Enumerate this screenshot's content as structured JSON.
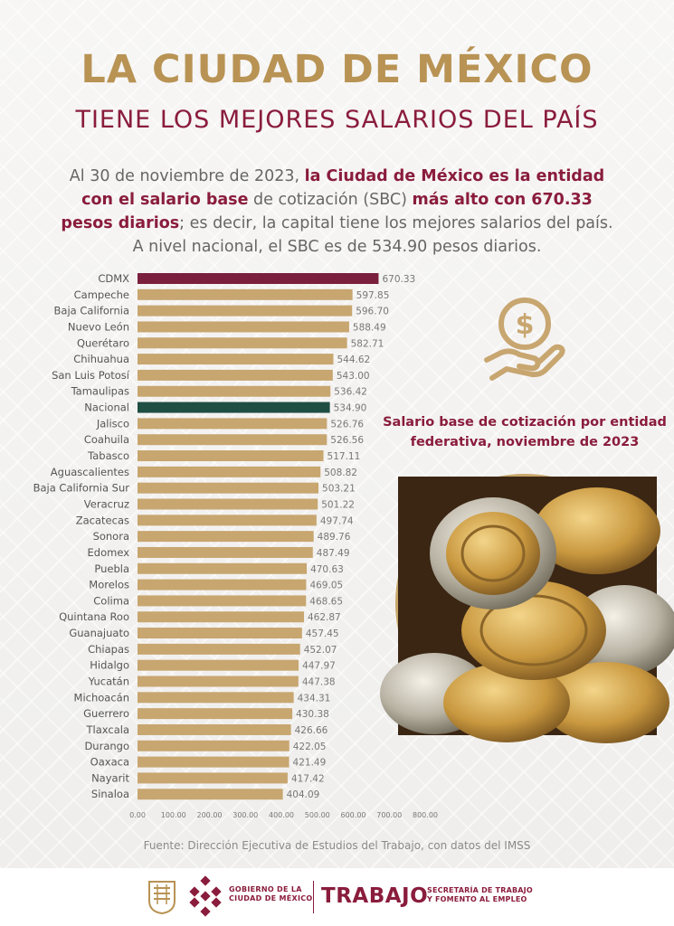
{
  "header": {
    "title": "LA CIUDAD DE MÉXICO",
    "subtitle": "TIENE LOS MEJORES SALARIOS DEL PAÍS"
  },
  "intro": {
    "p1": "Al 30 de noviembre de 2023, ",
    "b1": "la Ciudad de México es la entidad con el salario base",
    "p2": " de cotización (SBC) ",
    "b2": "más alto con 670.33 pesos diarios",
    "p3": "; es decir, la capital tiene los mejores salarios del país. A nivel nacional, el SBC es de 534.90 pesos diarios."
  },
  "caption": "Salario base de cotización por entidad federativa, noviembre de 2023",
  "source": "Fuente: Dirección Ejecutiva de Estudios del Trabajo, con datos del IMSS",
  "footer": {
    "gov_line1": "GOBIERNO DE LA",
    "gov_line2": "CIUDAD DE MÉXICO",
    "trabajo": "TRABAJO",
    "sec_line1": "SECRETARÍA DE TRABAJO",
    "sec_line2": "Y FOMENTO AL EMPLEO"
  },
  "colors": {
    "gold": "#c8a670",
    "cdmx": "#7a1f3d",
    "nacional": "#1f4e43",
    "title": "#b89354",
    "accent": "#8a1c3c"
  },
  "chart_data": {
    "type": "bar",
    "orientation": "horizontal",
    "categories": [
      "CDMX",
      "Campeche",
      "Baja California",
      "Nuevo León",
      "Querétaro",
      "Chihuahua",
      "San Luis Potosí",
      "Tamaulipas",
      "Nacional",
      "Jalisco",
      "Coahuila",
      "Tabasco",
      "Aguascalientes",
      "Baja California Sur",
      "Veracruz",
      "Zacatecas",
      "Sonora",
      "Edomex",
      "Puebla",
      "Morelos",
      "Colima",
      "Quintana Roo",
      "Guanajuato",
      "Chiapas",
      "Hidalgo",
      "Yucatán",
      "Michoacán",
      "Guerrero",
      "Tlaxcala",
      "Durango",
      "Oaxaca",
      "Nayarit",
      "Sinaloa"
    ],
    "values": [
      670.33,
      597.85,
      596.7,
      588.49,
      582.71,
      544.62,
      543.0,
      536.42,
      534.9,
      526.76,
      526.56,
      517.11,
      508.82,
      503.21,
      501.22,
      497.74,
      489.76,
      487.49,
      470.63,
      469.05,
      468.65,
      462.87,
      457.45,
      452.07,
      447.97,
      447.38,
      434.31,
      430.38,
      426.66,
      422.05,
      421.49,
      417.42,
      404.09
    ],
    "value_labels": [
      "670.33",
      "597.85",
      "596.70",
      "588.49",
      "582.71",
      "544.62",
      "543.00",
      "536.42",
      "534.90",
      "526.76",
      "526.56",
      "517.11",
      "508.82",
      "503.21",
      "501.22",
      "497.74",
      "489.76",
      "487.49",
      "470.63",
      "469.05",
      "468.65",
      "462.87",
      "457.45",
      "452.07",
      "447.97",
      "447.38",
      "434.31",
      "430.38",
      "426.66",
      "422.05",
      "421.49",
      "417.42",
      "404.09"
    ],
    "xticks": [
      "0.00",
      "100.00",
      "200.00",
      "300.00",
      "400.00",
      "500.00",
      "600.00",
      "700.00",
      "800.00"
    ],
    "xlim": [
      0,
      800
    ],
    "highlights": {
      "CDMX": "#7a1f3d",
      "Nacional": "#1f4e43"
    },
    "grid": false
  }
}
